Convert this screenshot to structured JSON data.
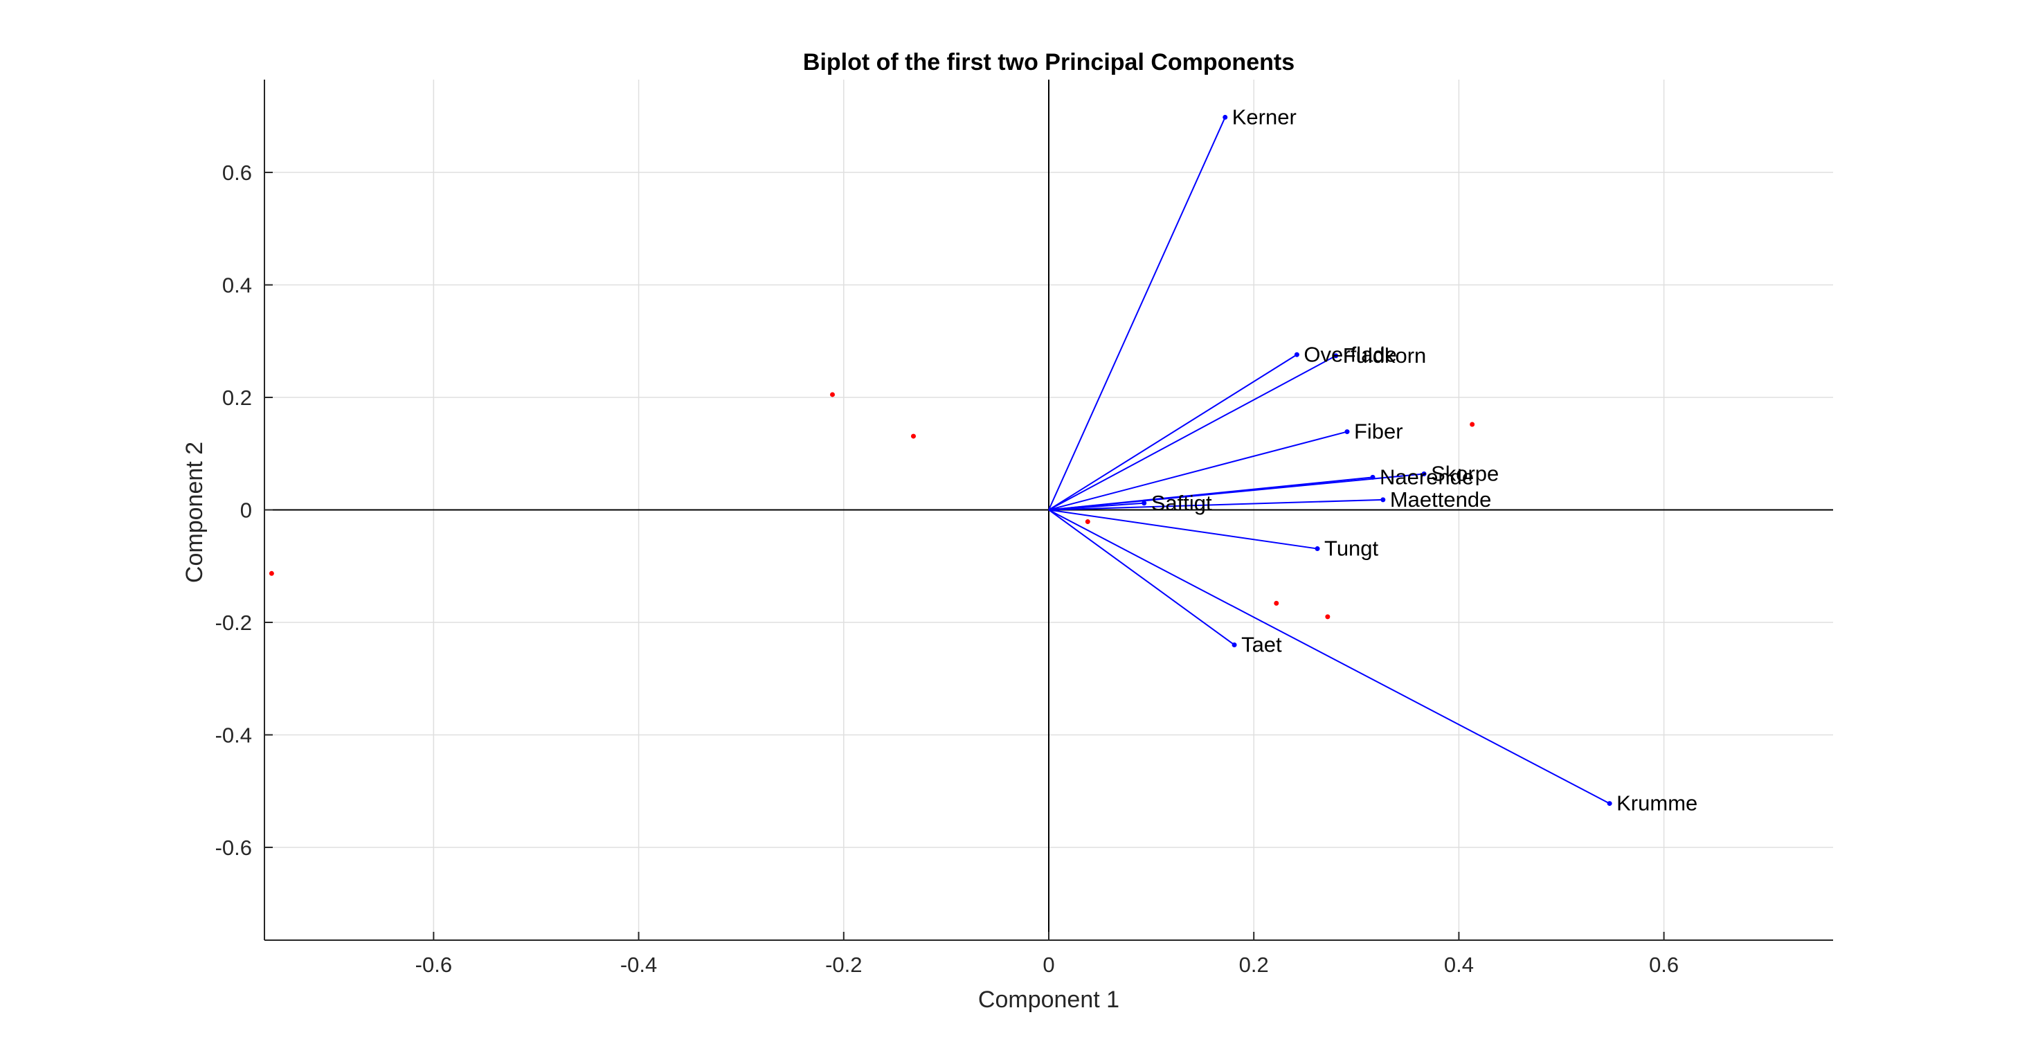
{
  "chart_data": {
    "type": "scatter",
    "subtype": "biplot",
    "title": "Biplot of the first two Principal Components",
    "xlabel": "Component 1",
    "ylabel": "Component 2",
    "xlim": [
      -0.765,
      0.765
    ],
    "ylim": [
      -0.765,
      0.765
    ],
    "xticks": [
      -0.6,
      -0.4,
      -0.2,
      0,
      0.2,
      0.4,
      0.6
    ],
    "yticks": [
      -0.6,
      -0.4,
      -0.2,
      0,
      0.2,
      0.4,
      0.6
    ],
    "grid": true,
    "vector_color": "#0000ff",
    "point_color": "#ff0000",
    "vectors": [
      {
        "label": "Kerner",
        "x": 0.172,
        "y": 0.698
      },
      {
        "label": "Overflade",
        "x": 0.242,
        "y": 0.276
      },
      {
        "label": "Fuldkorn",
        "x": 0.28,
        "y": 0.274
      },
      {
        "label": "Fiber",
        "x": 0.291,
        "y": 0.139
      },
      {
        "label": "Naerende",
        "x": 0.316,
        "y": 0.058
      },
      {
        "label": "Skorpe",
        "x": 0.366,
        "y": 0.064
      },
      {
        "label": "Maettende",
        "x": 0.326,
        "y": 0.018
      },
      {
        "label": "Saftigt",
        "x": 0.093,
        "y": 0.012
      },
      {
        "label": "Tungt",
        "x": 0.262,
        "y": -0.069
      },
      {
        "label": "Taet",
        "x": 0.181,
        "y": -0.24
      },
      {
        "label": "Krumme",
        "x": 0.547,
        "y": -0.522
      }
    ],
    "points": [
      {
        "x": -0.758,
        "y": -0.113
      },
      {
        "x": -0.211,
        "y": 0.205
      },
      {
        "x": -0.132,
        "y": 0.131
      },
      {
        "x": 0.038,
        "y": -0.021
      },
      {
        "x": 0.222,
        "y": -0.166
      },
      {
        "x": 0.272,
        "y": -0.19
      },
      {
        "x": 0.413,
        "y": 0.152
      }
    ]
  }
}
